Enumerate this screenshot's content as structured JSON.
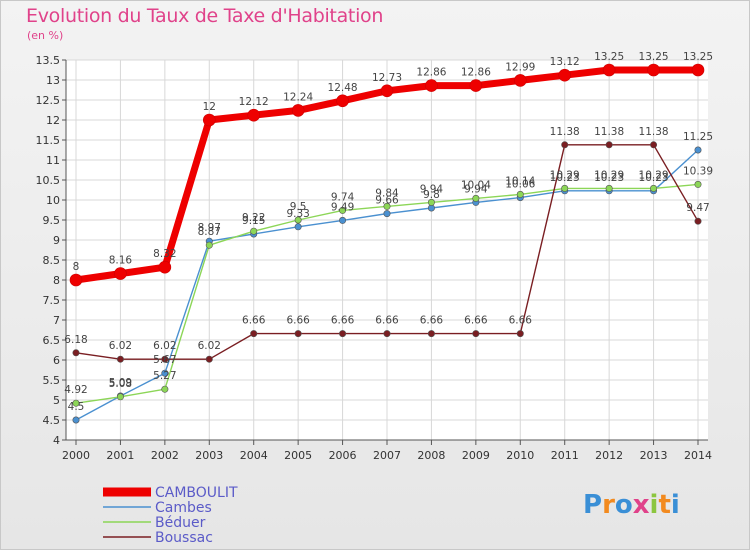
{
  "header": {
    "title": "Evolution du Taux de Taxe d'Habitation",
    "subtitle": "(en %)"
  },
  "logo": {
    "text": "Proxiti",
    "colors": [
      "#3a8fd6",
      "#f28a1f",
      "#3a8fd6",
      "#e0428a",
      "#8cc63f",
      "#f28a1f",
      "#3a8fd6"
    ]
  },
  "chart_data": {
    "type": "line",
    "x": [
      2000,
      2001,
      2002,
      2003,
      2004,
      2005,
      2006,
      2007,
      2008,
      2009,
      2010,
      2011,
      2012,
      2013,
      2014
    ],
    "ylim": [
      4,
      13.5
    ],
    "yticks": [
      "4",
      "4.5",
      "5",
      "5.5",
      "6",
      "6.5",
      "7",
      "7.5",
      "8",
      "8.5",
      "9",
      "9.5",
      "10",
      "10.5",
      "11",
      "11.5",
      "12",
      "12.5",
      "13",
      "13.5"
    ],
    "grid": true,
    "legend_position": "bottom-left",
    "series": [
      {
        "name": "CAMBOULIT",
        "color": "#ee0000",
        "emphasis": true,
        "values": [
          8,
          8.16,
          8.32,
          12,
          12.12,
          12.24,
          12.48,
          12.73,
          12.86,
          12.86,
          12.99,
          13.12,
          13.25,
          13.25,
          13.25
        ],
        "labels": [
          "8",
          "8.16",
          "8.32",
          "12",
          "12.12",
          "12.24",
          "12.48",
          "12.73",
          "12.86",
          "12.86",
          "12.99",
          "13.12",
          "13.25",
          "13.25",
          "13.25"
        ]
      },
      {
        "name": "Cambes",
        "color": "#4a90d0",
        "emphasis": false,
        "values": [
          4.5,
          5.1,
          5.67,
          8.97,
          9.15,
          9.33,
          9.49,
          9.66,
          9.8,
          9.94,
          10.06,
          10.23,
          10.23,
          10.23,
          11.25
        ],
        "labels": [
          "4.5",
          "5.09",
          "5.67",
          "8.97",
          "9.15",
          "9.33",
          "9.49",
          "9.66",
          "9.8",
          "9.94",
          "10.06",
          "10.23",
          "10.23",
          "10.23",
          "11.25"
        ]
      },
      {
        "name": "Béduer",
        "color": "#8cd657",
        "emphasis": false,
        "values": [
          4.92,
          5.08,
          5.27,
          8.87,
          9.22,
          9.5,
          9.74,
          9.84,
          9.94,
          10.04,
          10.14,
          10.29,
          10.29,
          10.29,
          10.39
        ],
        "labels": [
          "4.92",
          "5.08",
          "5.27",
          "8.87",
          "9.22",
          "9.5",
          "9.74",
          "9.84",
          "9.94",
          "10.04",
          "10.14",
          "10.29",
          "10.29",
          "10.29",
          "10.39"
        ]
      },
      {
        "name": "Boussac",
        "color": "#7a1e22",
        "emphasis": false,
        "values": [
          6.18,
          6.02,
          6.02,
          6.02,
          6.66,
          6.66,
          6.66,
          6.66,
          6.66,
          6.66,
          6.66,
          11.38,
          11.38,
          11.38,
          9.47
        ],
        "labels": [
          "6.18",
          "6.02",
          "6.02",
          "6.02",
          "6.66",
          "6.66",
          "6.66",
          "6.66",
          "6.66",
          "6.66",
          "6.66",
          "11.38",
          "11.38",
          "11.38",
          "9.47"
        ]
      }
    ]
  }
}
